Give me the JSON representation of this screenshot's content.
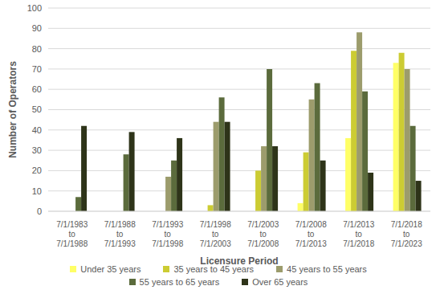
{
  "chart_data": {
    "type": "bar",
    "x_label": "Licensure Period",
    "y_label": "Number of Operators",
    "categories": [
      "7/1/1983 to 7/1/1988",
      "7/1/1988 to 7/1/1993",
      "7/1/1993 to 7/1/1998",
      "7/1/1998 to 7/1/2003",
      "7/1/2003 to 7/1/2008",
      "7/1/2008 to 7/1/2013",
      "7/1/2013 to 7/1/2018",
      "7/1/2018 to 7/1/2023"
    ],
    "series": [
      {
        "name": "Under 35 years",
        "color": "#ffff66",
        "values": [
          0,
          0,
          0,
          0,
          0,
          4,
          36,
          73
        ]
      },
      {
        "name": "35 years to 45 years",
        "color": "#cccc33",
        "values": [
          0,
          0,
          0,
          3,
          20,
          29,
          79,
          78
        ]
      },
      {
        "name": "45 years to 55 years",
        "color": "#9c9c6c",
        "values": [
          0,
          0,
          17,
          44,
          32,
          55,
          88,
          70
        ]
      },
      {
        "name": "55 years to 65 years",
        "color": "#5b6b3c",
        "values": [
          7,
          28,
          25,
          56,
          70,
          63,
          59,
          42
        ]
      },
      {
        "name": "Over 65 years",
        "color": "#2e3419",
        "values": [
          42,
          39,
          36,
          44,
          32,
          25,
          19,
          15
        ]
      }
    ],
    "ylim": [
      0,
      100
    ],
    "yticks": [
      0,
      10,
      20,
      30,
      40,
      50,
      60,
      70,
      80,
      90,
      100
    ],
    "grid": true,
    "legend": "bottom"
  }
}
